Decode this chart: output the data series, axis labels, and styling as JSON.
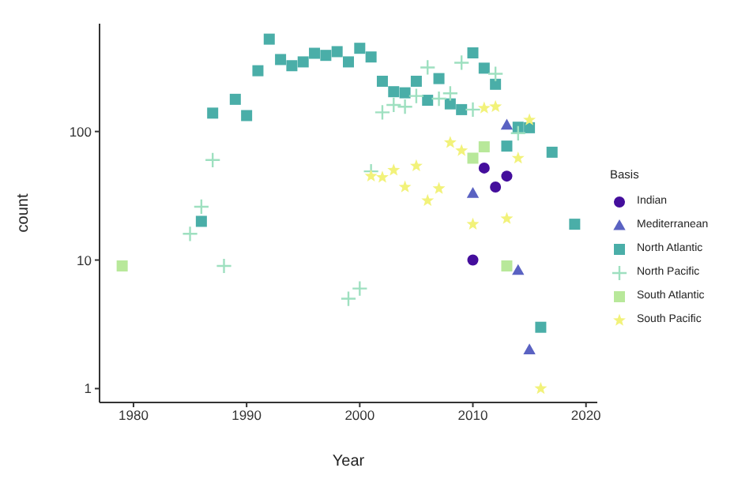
{
  "chart_data": {
    "type": "scatter",
    "xlabel": "Year",
    "ylabel": "count",
    "legend_title": "Basis",
    "legend": "right",
    "log": "y",
    "grid": false,
    "xlim": [
      1977,
      2021
    ],
    "xticks": [
      1980,
      1990,
      2000,
      2010,
      2020
    ],
    "ylim": [
      0.78,
      690
    ],
    "yticks": [
      1,
      10,
      100
    ],
    "series": [
      {
        "name": "Indian",
        "color": "#440e9c",
        "marker": "circle",
        "x": [
          2010,
          2011,
          2012,
          2013
        ],
        "values": [
          10,
          52,
          37,
          45
        ]
      },
      {
        "name": "Mediterranean",
        "color": "#5a62c2",
        "marker": "triangle",
        "x": [
          2010,
          2013,
          2014,
          2015
        ],
        "values": [
          33,
          112,
          8.3,
          2
        ]
      },
      {
        "name": "North Atlantic",
        "color": "#4aaea8",
        "marker": "square",
        "x": [
          1986,
          1987,
          1989,
          1990,
          1991,
          1992,
          1993,
          1994,
          1995,
          1996,
          1997,
          1998,
          1999,
          2000,
          2001,
          2002,
          2003,
          2004,
          2005,
          2006,
          2007,
          2008,
          2009,
          2010,
          2011,
          2012,
          2013,
          2014,
          2015,
          2016,
          2017,
          2019
        ],
        "values": [
          20,
          139,
          178,
          133,
          297,
          523,
          363,
          325,
          348,
          406,
          391,
          418,
          348,
          444,
          380,
          246,
          204,
          200,
          246,
          175,
          258,
          164,
          148,
          409,
          311,
          233,
          77,
          108,
          107,
          3,
          69,
          19
        ]
      },
      {
        "name": "North Pacific",
        "color": "#9ee0c0",
        "marker": "cross",
        "x": [
          1985,
          1986,
          1987,
          1988,
          1999,
          2000,
          2001,
          2002,
          2003,
          2004,
          2005,
          2006,
          2007,
          2008,
          2009,
          2010,
          2012,
          2014
        ],
        "values": [
          16,
          26,
          60,
          9,
          5,
          6,
          49,
          141,
          161,
          156,
          189,
          315,
          180,
          198,
          343,
          148,
          281,
          97
        ]
      },
      {
        "name": "South Atlantic",
        "color": "#b8e89a",
        "marker": "square",
        "x": [
          1979,
          2010,
          2011,
          2013
        ],
        "values": [
          9,
          62,
          76,
          9
        ]
      },
      {
        "name": "South Pacific",
        "color": "#f2f27a",
        "marker": "star",
        "x": [
          2001,
          2002,
          2003,
          2004,
          2005,
          2006,
          2007,
          2008,
          2009,
          2010,
          2011,
          2012,
          2013,
          2014,
          2015,
          2016
        ],
        "values": [
          45,
          44,
          50,
          37,
          54,
          29,
          36,
          82,
          71,
          19,
          152,
          156,
          21,
          62,
          123,
          1
        ]
      }
    ]
  }
}
